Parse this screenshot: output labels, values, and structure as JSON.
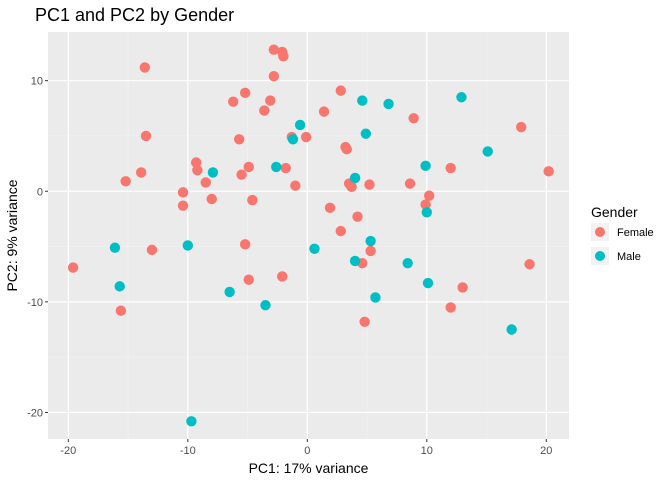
{
  "chart_data": {
    "type": "scatter",
    "title": "PC1 and PC2 by Gender",
    "xlabel": "PC1: 17% variance",
    "ylabel": "PC2: 9% variance",
    "xlim": [
      -21.7,
      21.9
    ],
    "ylim": [
      -22.4,
      14.4
    ],
    "x_ticks": [
      -20,
      -10,
      0,
      10,
      20
    ],
    "y_ticks": [
      -20,
      -10,
      0,
      10
    ],
    "x_tick_labels": [
      "-20",
      "-10",
      "0",
      "10",
      "20"
    ],
    "y_tick_labels": [
      "-20",
      "-10",
      "0",
      "10"
    ],
    "grid": true,
    "legend": {
      "title": "Gender",
      "position": "right"
    },
    "series": [
      {
        "name": "Female",
        "color": "#F8766D",
        "points": [
          [
            -19.6,
            -6.9
          ],
          [
            -15.6,
            -10.8
          ],
          [
            -15.2,
            0.9
          ],
          [
            -13.9,
            1.7
          ],
          [
            -13.6,
            11.2
          ],
          [
            -13.5,
            5.0
          ],
          [
            -13.0,
            -5.3
          ],
          [
            -10.4,
            -0.1
          ],
          [
            -10.4,
            -1.3
          ],
          [
            -9.3,
            2.6
          ],
          [
            -9.2,
            1.9
          ],
          [
            -8.5,
            0.8
          ],
          [
            -8.0,
            -0.7
          ],
          [
            -6.2,
            8.1
          ],
          [
            -5.7,
            4.7
          ],
          [
            -5.5,
            1.5
          ],
          [
            -5.2,
            8.9
          ],
          [
            -5.2,
            -4.8
          ],
          [
            -4.9,
            2.2
          ],
          [
            -4.9,
            -8.0
          ],
          [
            -4.6,
            -0.8
          ],
          [
            -3.6,
            7.3
          ],
          [
            -3.1,
            8.2
          ],
          [
            -2.8,
            12.8
          ],
          [
            -2.8,
            10.4
          ],
          [
            -2.1,
            12.6
          ],
          [
            -2.0,
            12.2
          ],
          [
            -2.1,
            -7.7
          ],
          [
            -1.8,
            2.1
          ],
          [
            -1.3,
            4.9
          ],
          [
            -1.0,
            0.5
          ],
          [
            -0.1,
            4.9
          ],
          [
            1.4,
            7.2
          ],
          [
            1.9,
            -1.5
          ],
          [
            2.8,
            9.1
          ],
          [
            2.8,
            -3.6
          ],
          [
            3.2,
            4.0
          ],
          [
            3.3,
            3.8
          ],
          [
            3.5,
            0.7
          ],
          [
            3.7,
            0.4
          ],
          [
            4.2,
            -2.3
          ],
          [
            4.6,
            -6.5
          ],
          [
            4.8,
            -11.8
          ],
          [
            5.2,
            0.6
          ],
          [
            5.3,
            -5.4
          ],
          [
            8.6,
            0.7
          ],
          [
            8.9,
            6.6
          ],
          [
            9.9,
            -1.2
          ],
          [
            10.2,
            -0.4
          ],
          [
            12.0,
            2.1
          ],
          [
            12.0,
            -10.5
          ],
          [
            13.0,
            -8.7
          ],
          [
            17.9,
            5.8
          ],
          [
            18.6,
            -6.6
          ],
          [
            20.2,
            1.8
          ]
        ]
      },
      {
        "name": "Male",
        "color": "#00BFC4",
        "points": [
          [
            -16.1,
            -5.1
          ],
          [
            -15.7,
            -8.6
          ],
          [
            -10.0,
            -4.9
          ],
          [
            -9.7,
            -20.8
          ],
          [
            -7.9,
            1.7
          ],
          [
            -6.5,
            -9.1
          ],
          [
            -3.5,
            -10.3
          ],
          [
            -2.6,
            2.2
          ],
          [
            -1.2,
            4.7
          ],
          [
            -0.6,
            6.0
          ],
          [
            0.6,
            -5.2
          ],
          [
            4.0,
            1.2
          ],
          [
            4.0,
            -6.3
          ],
          [
            4.6,
            8.2
          ],
          [
            4.9,
            5.2
          ],
          [
            5.3,
            -4.5
          ],
          [
            5.7,
            -9.6
          ],
          [
            6.8,
            7.9
          ],
          [
            8.4,
            -6.5
          ],
          [
            9.9,
            2.3
          ],
          [
            10.0,
            -1.9
          ],
          [
            10.1,
            -8.3
          ],
          [
            12.9,
            8.5
          ],
          [
            15.1,
            3.6
          ],
          [
            17.1,
            -12.5
          ]
        ]
      }
    ]
  }
}
